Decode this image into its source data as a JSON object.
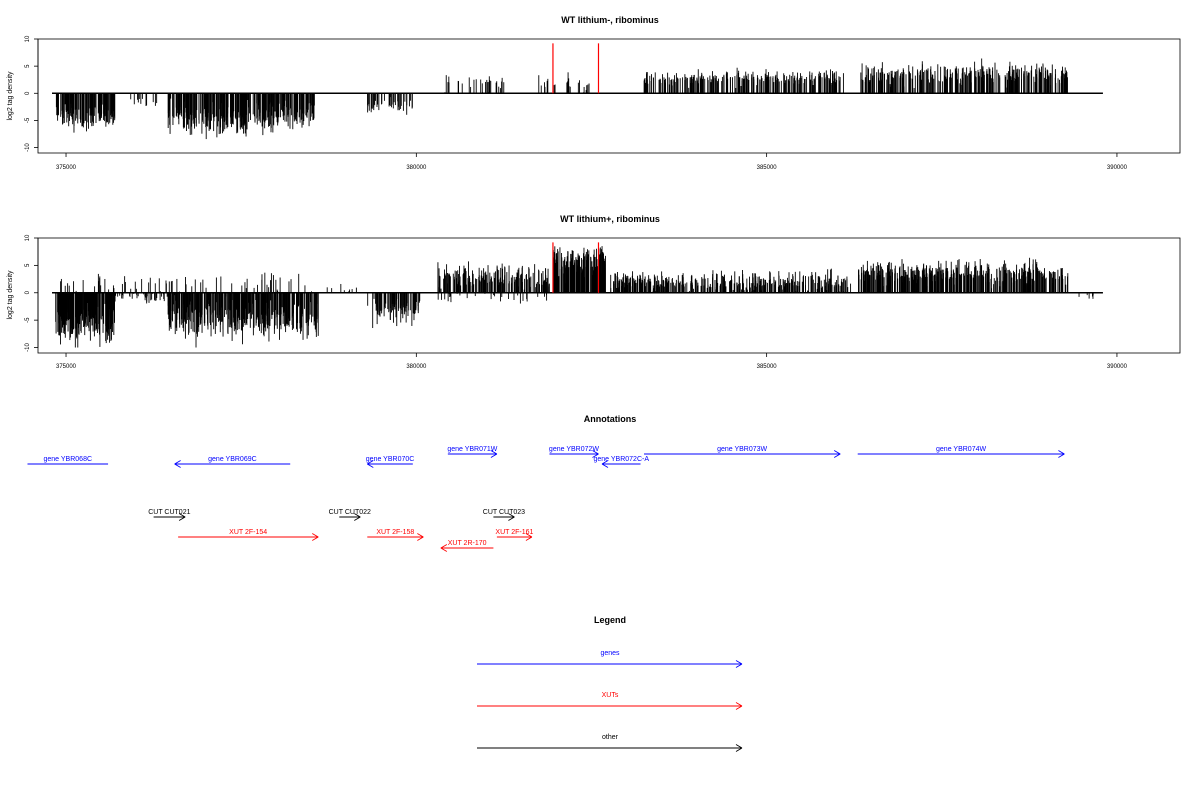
{
  "chart_data": [
    {
      "type": "bar",
      "title": "WT lithium-, ribominus",
      "ylabel": "log2 tag density",
      "xlim": [
        374600,
        390900
      ],
      "ylim": [
        -11,
        10
      ],
      "x_ticks": [
        375000,
        380000,
        385000,
        390000
      ],
      "x_tick_labels": [
        "375000",
        "380000",
        "385000",
        "390000"
      ],
      "y_ticks": [
        -10,
        -5,
        0,
        5,
        10
      ],
      "y_tick_labels": [
        "-10",
        "-5",
        "0",
        "5",
        "10"
      ],
      "baseline_range": [
        374800,
        389800
      ],
      "highlight_lines": [
        {
          "x": 381950,
          "ymax": 9.2,
          "color": "#ff0000"
        },
        {
          "x": 382600,
          "ymax": 9.2,
          "color": "#ff0000"
        }
      ],
      "density_regions": [
        {
          "start": 374850,
          "end": 375700,
          "mean": -4.3,
          "spread": 1.5,
          "count": 140
        },
        {
          "start": 375900,
          "end": 376300,
          "mean": -1.5,
          "spread": 0.6,
          "count": 12
        },
        {
          "start": 376450,
          "end": 377600,
          "mean": -4.6,
          "spread": 1.6,
          "count": 190
        },
        {
          "start": 377600,
          "end": 378550,
          "mean": -4.0,
          "spread": 1.4,
          "count": 160
        },
        {
          "start": 379300,
          "end": 379950,
          "mean": -2.2,
          "spread": 0.8,
          "count": 45
        },
        {
          "start": 380400,
          "end": 381300,
          "mean": 1.9,
          "spread": 0.9,
          "count": 30
        },
        {
          "start": 381700,
          "end": 382500,
          "mean": 1.8,
          "spread": 0.9,
          "count": 26
        },
        {
          "start": 383250,
          "end": 386100,
          "mean": 2.8,
          "spread": 0.7,
          "count": 280
        },
        {
          "start": 386300,
          "end": 389300,
          "mean": 3.6,
          "spread": 1.0,
          "count": 320
        }
      ]
    },
    {
      "type": "bar",
      "title": "WT lithium+, ribominus",
      "ylabel": "log2 tag density",
      "xlim": [
        374600,
        390900
      ],
      "ylim": [
        -11,
        10
      ],
      "x_ticks": [
        375000,
        380000,
        385000,
        390000
      ],
      "x_tick_labels": [
        "375000",
        "380000",
        "385000",
        "390000"
      ],
      "y_ticks": [
        -10,
        -5,
        0,
        5,
        10
      ],
      "y_tick_labels": [
        "-10",
        "-5",
        "0",
        "5",
        "10"
      ],
      "baseline_range": [
        374800,
        389800
      ],
      "highlight_lines": [
        {
          "x": 381950,
          "ymax": 9.2,
          "color": "#ff0000"
        },
        {
          "x": 382600,
          "ymax": 9.2,
          "color": "#ff0000"
        }
      ],
      "density_regions": [
        {
          "start": 374850,
          "end": 375700,
          "mean": -5.2,
          "spread": 1.8,
          "count": 230
        },
        {
          "start": 375700,
          "end": 376450,
          "mean": -1.0,
          "spread": 0.5,
          "count": 40
        },
        {
          "start": 376450,
          "end": 378600,
          "mean": -4.8,
          "spread": 1.8,
          "count": 380
        },
        {
          "start": 374900,
          "end": 378600,
          "mean": 1.7,
          "spread": 0.9,
          "count": 70
        },
        {
          "start": 378700,
          "end": 379200,
          "mean": 1.0,
          "spread": 0.5,
          "count": 8
        },
        {
          "start": 379300,
          "end": 380050,
          "mean": -3.0,
          "spread": 1.2,
          "count": 90
        },
        {
          "start": 380300,
          "end": 381900,
          "mean": 2.8,
          "spread": 1.2,
          "count": 190
        },
        {
          "start": 380300,
          "end": 381900,
          "mean": -1.0,
          "spread": 0.5,
          "count": 30
        },
        {
          "start": 381950,
          "end": 382700,
          "mean": 5.8,
          "spread": 1.4,
          "count": 170
        },
        {
          "start": 382750,
          "end": 386200,
          "mean": 2.0,
          "spread": 0.9,
          "count": 400
        },
        {
          "start": 386300,
          "end": 389300,
          "mean": 3.7,
          "spread": 1.1,
          "count": 420
        },
        {
          "start": 389400,
          "end": 389800,
          "mean": -0.8,
          "spread": 0.4,
          "count": 6
        }
      ]
    }
  ],
  "annotations": {
    "title": "Annotations",
    "xlim": [
      374600,
      390900
    ],
    "features": [
      {
        "label": "gene YBR068C",
        "start": 374450,
        "end": 375600,
        "dir": "left",
        "row": 0,
        "type": "gene",
        "color": "#0000ff",
        "arrow": false
      },
      {
        "label": "gene YBR069C",
        "start": 376550,
        "end": 378200,
        "dir": "left",
        "row": 0,
        "type": "gene",
        "color": "#0000ff",
        "arrow": true
      },
      {
        "label": "gene YBR070C",
        "start": 379300,
        "end": 379950,
        "dir": "left",
        "row": 0,
        "type": "gene",
        "color": "#0000ff",
        "arrow": true
      },
      {
        "label": "gene YBR071W",
        "start": 380450,
        "end": 381150,
        "dir": "right",
        "row": 1,
        "type": "gene",
        "color": "#0000ff",
        "arrow": true
      },
      {
        "label": "gene YBR072W",
        "start": 381900,
        "end": 382600,
        "dir": "right",
        "row": 1,
        "type": "gene",
        "color": "#0000ff",
        "arrow": true
      },
      {
        "label": "gene YBR072C-A",
        "start": 382650,
        "end": 383200,
        "dir": "left",
        "row": 0,
        "type": "gene",
        "color": "#0000ff",
        "arrow": true
      },
      {
        "label": "gene YBR073W",
        "start": 383250,
        "end": 386050,
        "dir": "right",
        "row": 1,
        "type": "gene",
        "color": "#0000ff",
        "arrow": true
      },
      {
        "label": "gene YBR074W",
        "start": 386300,
        "end": 389250,
        "dir": "right",
        "row": 1,
        "type": "gene",
        "color": "#0000ff",
        "arrow": true
      },
      {
        "label": "CUT CUT021",
        "start": 376250,
        "end": 376700,
        "dir": "right",
        "row": 2,
        "type": "other",
        "color": "#000000",
        "arrow": true
      },
      {
        "label": "CUT CUT022",
        "start": 378900,
        "end": 379200,
        "dir": "right",
        "row": 2,
        "type": "other",
        "color": "#000000",
        "arrow": true
      },
      {
        "label": "CUT CUT023",
        "start": 381100,
        "end": 381400,
        "dir": "right",
        "row": 2,
        "type": "other",
        "color": "#000000",
        "arrow": true
      },
      {
        "label": "XUT 2F-154",
        "start": 376600,
        "end": 378600,
        "dir": "right",
        "row": 3,
        "type": "xut",
        "color": "#ff0000",
        "arrow": true
      },
      {
        "label": "XUT 2F-158",
        "start": 379300,
        "end": 380100,
        "dir": "right",
        "row": 3,
        "type": "xut",
        "color": "#ff0000",
        "arrow": true
      },
      {
        "label": "XUT 2R-170",
        "start": 380350,
        "end": 381100,
        "dir": "left",
        "row": 4,
        "type": "xut",
        "color": "#ff0000",
        "arrow": true
      },
      {
        "label": "XUT 2F-161",
        "start": 381150,
        "end": 381650,
        "dir": "right",
        "row": 3,
        "type": "xut",
        "color": "#ff0000",
        "arrow": true
      }
    ]
  },
  "legend": {
    "title": "Legend",
    "items": [
      {
        "label": "genes",
        "color": "#0000ff"
      },
      {
        "label": "XUTs",
        "color": "#ff0000"
      },
      {
        "label": "other",
        "color": "#000000"
      }
    ]
  }
}
